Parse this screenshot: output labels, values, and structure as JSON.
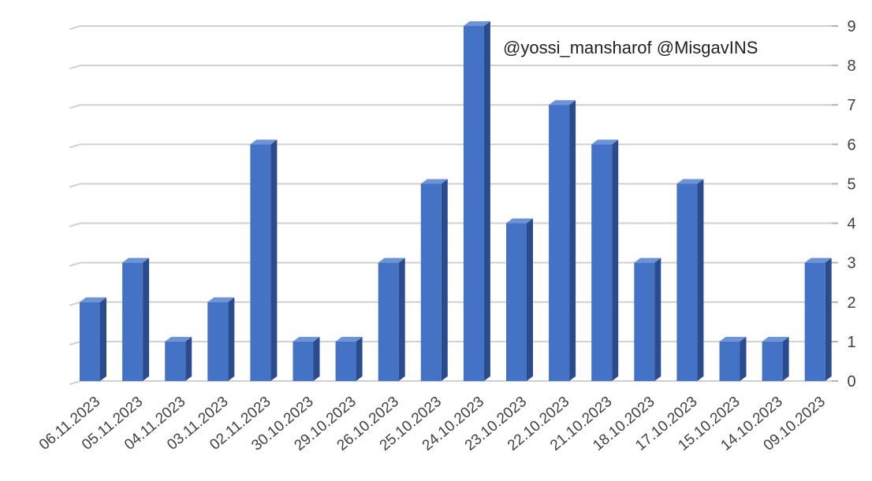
{
  "chart_data": {
    "type": "bar",
    "title": "",
    "xlabel": "",
    "ylabel": "",
    "annotation": "@yossi_mansharof @MisgavINS",
    "categories": [
      "06.11.2023",
      "05.11.2023",
      "04.11.2023",
      "03.11.2023",
      "02.11.2023",
      "30.10.2023",
      "29.10.2023",
      "26.10.2023",
      "25.10.2023",
      "24.10.2023",
      "23.10.2023",
      "22.10.2023",
      "21.10.2023",
      "18.10.2023",
      "17.10.2023",
      "15.10.2023",
      "14.10.2023",
      "09.10.2023"
    ],
    "values": [
      2,
      3,
      1,
      2,
      6,
      1,
      1,
      3,
      5,
      9,
      4,
      7,
      6,
      3,
      5,
      1,
      1,
      3
    ],
    "yticks": [
      "0",
      "1",
      "2",
      "3",
      "4",
      "5",
      "6",
      "7",
      "8",
      "9"
    ],
    "ylim": [
      0,
      9
    ],
    "y_axis_position": "right",
    "grid": true,
    "bar_color": "#4472c4",
    "bar_side_color": "#2a4c8f",
    "bar_top_color": "#6b93d6"
  }
}
